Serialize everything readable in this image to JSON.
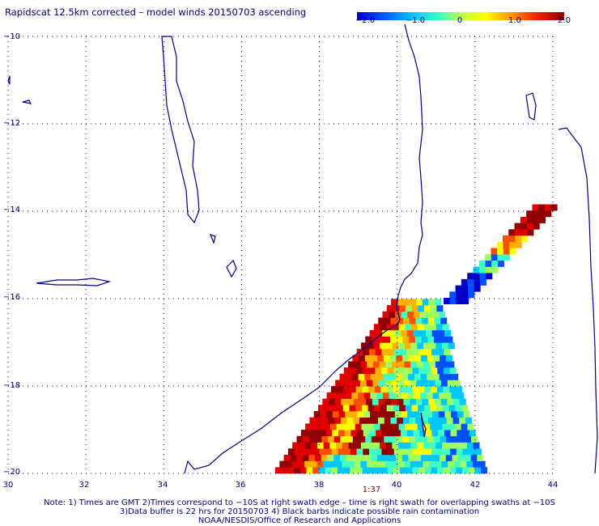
{
  "title": "Rapidscat 12.5km corrected – model winds 20150703 ascending",
  "colorbar": {
    "ticks": [
      "−2.0",
      "−1.0",
      "0",
      "1.0",
      "2.0"
    ],
    "range": [
      -2.0,
      2.0
    ],
    "colors": [
      "#0000c8",
      "#0050ff",
      "#00c8ff",
      "#40ffc0",
      "#a0ff60",
      "#ffff00",
      "#ffb000",
      "#ff5000",
      "#e00000",
      "#900000"
    ]
  },
  "lat_labels": [
    "−10",
    "−12",
    "−14",
    "−16",
    "−18",
    "−20"
  ],
  "lon_labels": [
    "30",
    "32",
    "34",
    "36",
    "38",
    "40",
    "42",
    "44"
  ],
  "time_label": "1:37",
  "notes": {
    "line1": "Note: 1) Times are GMT 2)Times correspond to −10S at right swath edge – time is right swath for overlapping swaths at −10S",
    "line2": "3)Data buffer is 22 hrs for 20150703 4) Black barbs indicate possible rain contamination",
    "line3": "NOAA/NESDIS/Office of Research and Applications"
  },
  "map": {
    "region": {
      "lon": [
        30,
        44
      ],
      "lat": [
        -20,
        -10
      ]
    },
    "grid": "dotted",
    "coastline_color": "#000080"
  }
}
